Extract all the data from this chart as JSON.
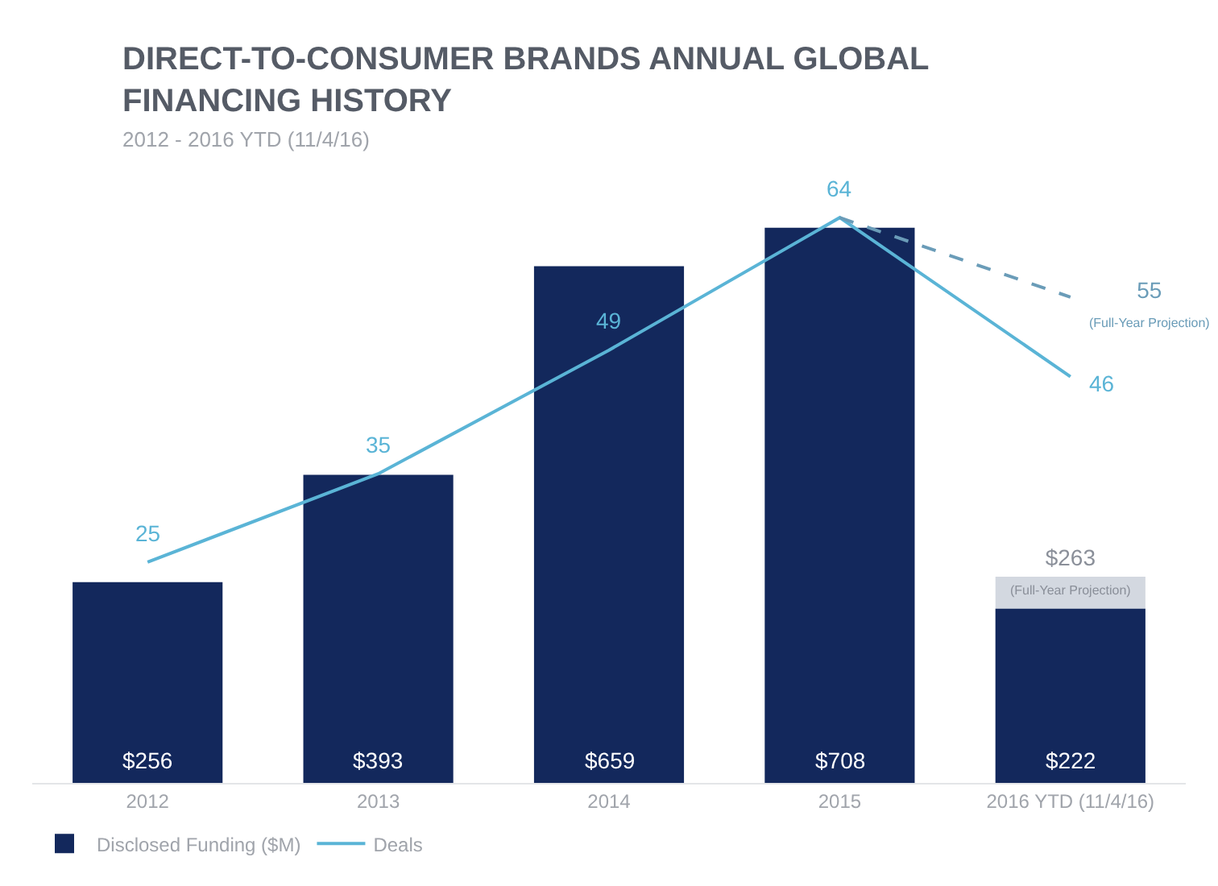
{
  "chart_data": {
    "type": "bar",
    "title": "DIRECT-TO-CONSUMER BRANDS ANNUAL GLOBAL FINANCING HISTORY",
    "subtitle": "2012 - 2016 YTD (11/4/16)",
    "categories": [
      "2012",
      "2013",
      "2014",
      "2015",
      "2016 YTD (11/4/16)"
    ],
    "tick_labels": "x",
    "legend": "bottom left",
    "series": [
      {
        "color": "#d3d8e0",
        "values": [
          null,
          null,
          null,
          null,
          263
        ],
        "value_labels": [
          null,
          null,
          null,
          null,
          "$263\n(Full-Year Projection)"
        ]
      },
      {
        "name": "Disclosed Funding ($M)",
        "color": "#13285c",
        "values": [
          256,
          393,
          659,
          708,
          222
        ],
        "value_labels": [
          "$256",
          "$393",
          "$659",
          "$708",
          "$222"
        ]
      },
      {
        "name": "Deals",
        "type": "line",
        "axis": "y2",
        "color": "#5ab4d6",
        "marker": "none",
        "line_style": "solid",
        "values": [
          25,
          35,
          49,
          64,
          46
        ],
        "value_labels": [
          "25",
          "35",
          "49",
          "64",
          "46"
        ]
      },
      {
        "type": "line",
        "axis": "y2",
        "color": "#6a9cb8",
        "marker": "none",
        "line_style": "dashed",
        "values": [
          null,
          null,
          null,
          64,
          55
        ],
        "value_labels": [
          null,
          null,
          null,
          null,
          "55\n(Full-Year Projection)"
        ]
      }
    ]
  }
}
